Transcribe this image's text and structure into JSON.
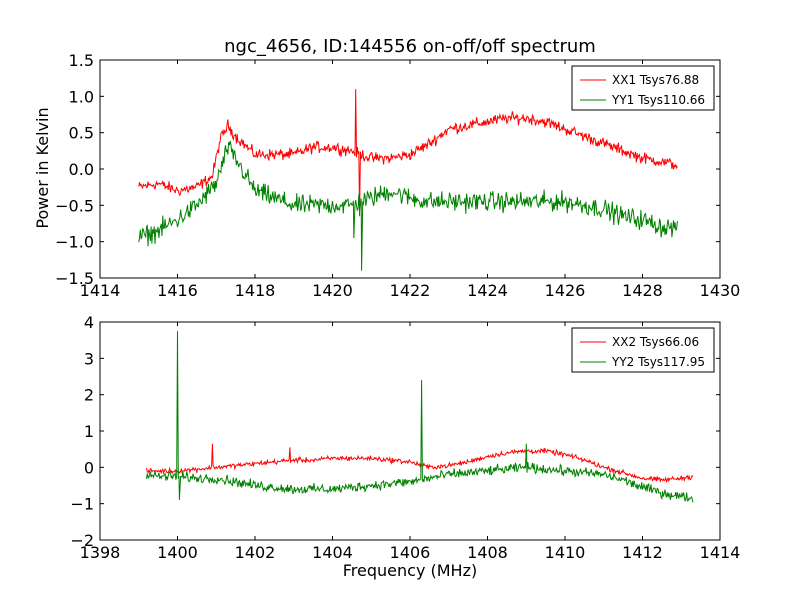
{
  "figure": {
    "title": "ngc_4656, ID:144556 on-off/off spectrum",
    "xlabel": "Frequency (MHz)",
    "ylabel": "Power in Kelvin"
  },
  "colors": {
    "red": "#ff0000",
    "green": "#008000"
  },
  "chart_data": [
    {
      "type": "line",
      "title": "ngc_4656, ID:144556 on-off/off spectrum",
      "xlabel": "",
      "ylabel": "Power in Kelvin",
      "xlim": [
        1414,
        1430
      ],
      "ylim": [
        -1.5,
        1.5
      ],
      "xticks": [
        1414,
        1416,
        1418,
        1420,
        1422,
        1424,
        1426,
        1428,
        1430
      ],
      "yticks": [
        -1.5,
        -1.0,
        -0.5,
        0.0,
        0.5,
        1.0,
        1.5
      ],
      "ytick_labels": [
        "−1.5",
        "−1.0",
        "−0.5",
        "0.0",
        "0.5",
        "1.0",
        "1.5"
      ],
      "legend_position": "top-right",
      "series": [
        {
          "name": "XX1 Tsys76.88",
          "color": "#ff0000",
          "noise": 0.07,
          "x": [
            1415.0,
            1415.5,
            1416.0,
            1416.5,
            1416.9,
            1417.1,
            1417.3,
            1417.5,
            1417.8,
            1418.0,
            1418.5,
            1419.0,
            1419.5,
            1420.0,
            1420.5,
            1421.0,
            1421.5,
            1422.0,
            1422.5,
            1423.0,
            1423.5,
            1424.0,
            1424.5,
            1425.0,
            1425.5,
            1426.0,
            1426.5,
            1427.0,
            1427.5,
            1428.0,
            1428.5,
            1428.9
          ],
          "y": [
            -0.25,
            -0.2,
            -0.3,
            -0.25,
            -0.1,
            0.4,
            0.6,
            0.45,
            0.3,
            0.2,
            0.2,
            0.2,
            0.3,
            0.3,
            0.25,
            0.15,
            0.15,
            0.2,
            0.35,
            0.55,
            0.6,
            0.65,
            0.7,
            0.7,
            0.65,
            0.55,
            0.45,
            0.35,
            0.25,
            0.15,
            0.1,
            0.05
          ],
          "spikes": [
            {
              "x": 1420.6,
              "y": 1.1
            },
            {
              "x": 1420.7,
              "y": -0.65
            }
          ]
        },
        {
          "name": "YY1 Tsys110.66",
          "color": "#008000",
          "noise": 0.12,
          "x": [
            1415.0,
            1415.5,
            1416.0,
            1416.5,
            1417.0,
            1417.3,
            1417.6,
            1418.0,
            1418.5,
            1419.0,
            1419.5,
            1420.0,
            1420.5,
            1421.0,
            1421.5,
            1422.0,
            1422.5,
            1423.0,
            1424.0,
            1425.0,
            1426.0,
            1427.0,
            1427.5,
            1428.0,
            1428.5,
            1428.9
          ],
          "y": [
            -0.95,
            -0.85,
            -0.7,
            -0.5,
            -0.2,
            0.3,
            0.05,
            -0.3,
            -0.4,
            -0.5,
            -0.5,
            -0.5,
            -0.5,
            -0.4,
            -0.3,
            -0.4,
            -0.45,
            -0.45,
            -0.45,
            -0.45,
            -0.45,
            -0.55,
            -0.65,
            -0.7,
            -0.8,
            -0.8
          ],
          "spikes": [
            {
              "x": 1420.55,
              "y": -0.95
            },
            {
              "x": 1420.75,
              "y": -1.4
            }
          ]
        }
      ]
    },
    {
      "type": "line",
      "title": "",
      "xlabel": "Frequency (MHz)",
      "ylabel": "",
      "xlim": [
        1398,
        1414
      ],
      "ylim": [
        -2,
        4
      ],
      "xticks": [
        1398,
        1400,
        1402,
        1404,
        1406,
        1408,
        1410,
        1412,
        1414
      ],
      "yticks": [
        -2,
        -1,
        0,
        1,
        2,
        3,
        4
      ],
      "ytick_labels": [
        "−2",
        "−1",
        "0",
        "1",
        "2",
        "3",
        "4"
      ],
      "legend_position": "top-right",
      "series": [
        {
          "name": "XX2 Tsys66.06",
          "color": "#ff0000",
          "noise": 0.06,
          "x": [
            1399.2,
            1399.5,
            1400.0,
            1400.5,
            1401.0,
            1401.5,
            1402.0,
            1402.5,
            1403.0,
            1403.5,
            1404.0,
            1404.5,
            1405.0,
            1405.5,
            1406.0,
            1406.5,
            1407.0,
            1407.5,
            1408.0,
            1408.5,
            1409.0,
            1409.5,
            1410.0,
            1410.5,
            1411.0,
            1411.5,
            1412.0,
            1412.5,
            1413.0,
            1413.3
          ],
          "y": [
            -0.1,
            -0.1,
            -0.1,
            -0.05,
            0.0,
            0.05,
            0.1,
            0.15,
            0.2,
            0.2,
            0.25,
            0.25,
            0.25,
            0.2,
            0.15,
            0.0,
            0.05,
            0.15,
            0.3,
            0.4,
            0.45,
            0.45,
            0.35,
            0.2,
            0.0,
            -0.15,
            -0.3,
            -0.35,
            -0.3,
            -0.25
          ],
          "spikes": [
            {
              "x": 1400.9,
              "y": 0.65
            },
            {
              "x": 1402.9,
              "y": 0.55
            }
          ]
        },
        {
          "name": "YY2 Tsys117.95",
          "color": "#008000",
          "noise": 0.12,
          "x": [
            1399.2,
            1399.5,
            1400.0,
            1400.5,
            1401.0,
            1401.5,
            1402.0,
            1402.5,
            1403.0,
            1403.5,
            1404.0,
            1404.5,
            1405.0,
            1405.5,
            1406.0,
            1406.5,
            1407.0,
            1407.5,
            1408.0,
            1408.5,
            1409.0,
            1409.5,
            1410.0,
            1410.5,
            1411.0,
            1411.5,
            1412.0,
            1412.5,
            1413.0,
            1413.3
          ],
          "y": [
            -0.2,
            -0.25,
            -0.25,
            -0.3,
            -0.3,
            -0.4,
            -0.5,
            -0.55,
            -0.6,
            -0.6,
            -0.6,
            -0.55,
            -0.5,
            -0.45,
            -0.4,
            -0.3,
            -0.2,
            -0.15,
            -0.1,
            -0.05,
            0.0,
            -0.05,
            -0.1,
            -0.15,
            -0.2,
            -0.35,
            -0.55,
            -0.7,
            -0.8,
            -0.85
          ],
          "spikes": [
            {
              "x": 1400.0,
              "y": 3.75
            },
            {
              "x": 1400.05,
              "y": -0.9
            },
            {
              "x": 1406.3,
              "y": 2.4
            },
            {
              "x": 1409.0,
              "y": 0.65
            }
          ]
        }
      ]
    }
  ]
}
